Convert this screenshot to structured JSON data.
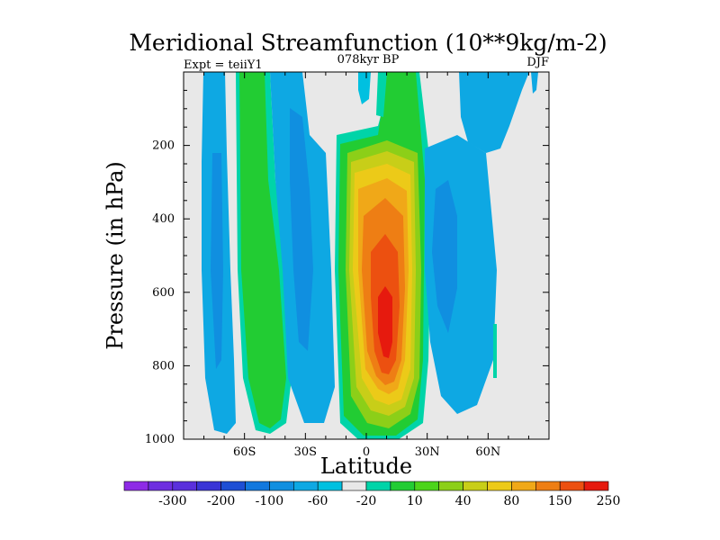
{
  "chart_data": {
    "type": "heatmap",
    "title": "Meridional Streamfunction (10**9kg/m-2)",
    "left_subtitle": "Expt = teiiY1",
    "center_subtitle": "078kyr BP",
    "right_subtitle": "DJF",
    "xlabel": "Latitude",
    "ylabel": "Pressure (in hPa)",
    "xlim": [
      -90,
      90
    ],
    "ylim": [
      1000,
      0
    ],
    "y_reversed": true,
    "grid": false,
    "x_ticks": [
      {
        "value": -60,
        "label": "60S"
      },
      {
        "value": -30,
        "label": "30S"
      },
      {
        "value": 0,
        "label": "0"
      },
      {
        "value": 30,
        "label": "30N"
      },
      {
        "value": 60,
        "label": "60N"
      }
    ],
    "y_ticks": [
      {
        "value": 200,
        "label": "200"
      },
      {
        "value": 400,
        "label": "400"
      },
      {
        "value": 600,
        "label": "600"
      },
      {
        "value": 800,
        "label": "800"
      },
      {
        "value": 1000,
        "label": "1000"
      }
    ],
    "colorbar": {
      "placement": "bottom",
      "colors": [
        "#8e2be6",
        "#6e2ee0",
        "#5a30dc",
        "#3a35d6",
        "#1e4fd4",
        "#1278de",
        "#108fe0",
        "#0ea8e3",
        "#00c0e0",
        "#e8e8e8",
        "#00d4a8",
        "#22cc33",
        "#4cd41a",
        "#8ccf18",
        "#c8ce18",
        "#ecca18",
        "#f0a818",
        "#ee7e14",
        "#ec5010",
        "#e61a0e"
      ],
      "labels": [
        {
          "after_bin": 1,
          "label": "-300"
        },
        {
          "after_bin": 3,
          "label": "-200"
        },
        {
          "after_bin": 5,
          "label": "-100"
        },
        {
          "after_bin": 7,
          "label": "-60"
        },
        {
          "after_bin": 9,
          "label": "-20"
        },
        {
          "after_bin": 11,
          "label": "10"
        },
        {
          "after_bin": 13,
          "label": "40"
        },
        {
          "after_bin": 15,
          "label": "80"
        },
        {
          "after_bin": 17,
          "label": "150"
        },
        {
          "after_bin": 19,
          "label": "250"
        }
      ]
    },
    "features": [
      {
        "name": "southern-cell",
        "lat_center": -72,
        "lat_halfwidth": 7,
        "p_top": 0,
        "p_bottom": 980,
        "sign": -1
      },
      {
        "name": "southern-ferrel",
        "lat_center": -52,
        "lat_halfwidth": 10,
        "p_top": 0,
        "p_bottom": 970,
        "sign": 1
      },
      {
        "name": "southern-hadley",
        "lat_center": -28,
        "lat_halfwidth": 9,
        "p_top": 0,
        "p_bottom": 950,
        "sign": -1
      },
      {
        "name": "northern-hadley",
        "lat_center": 10,
        "lat_halfwidth": 13,
        "p_top": 180,
        "p_bottom": 1000,
        "sign": 1
      },
      {
        "name": "northern-ferrel",
        "lat_center": 44,
        "lat_halfwidth": 14,
        "p_top": 0,
        "p_bottom": 900,
        "sign": -1
      }
    ]
  }
}
